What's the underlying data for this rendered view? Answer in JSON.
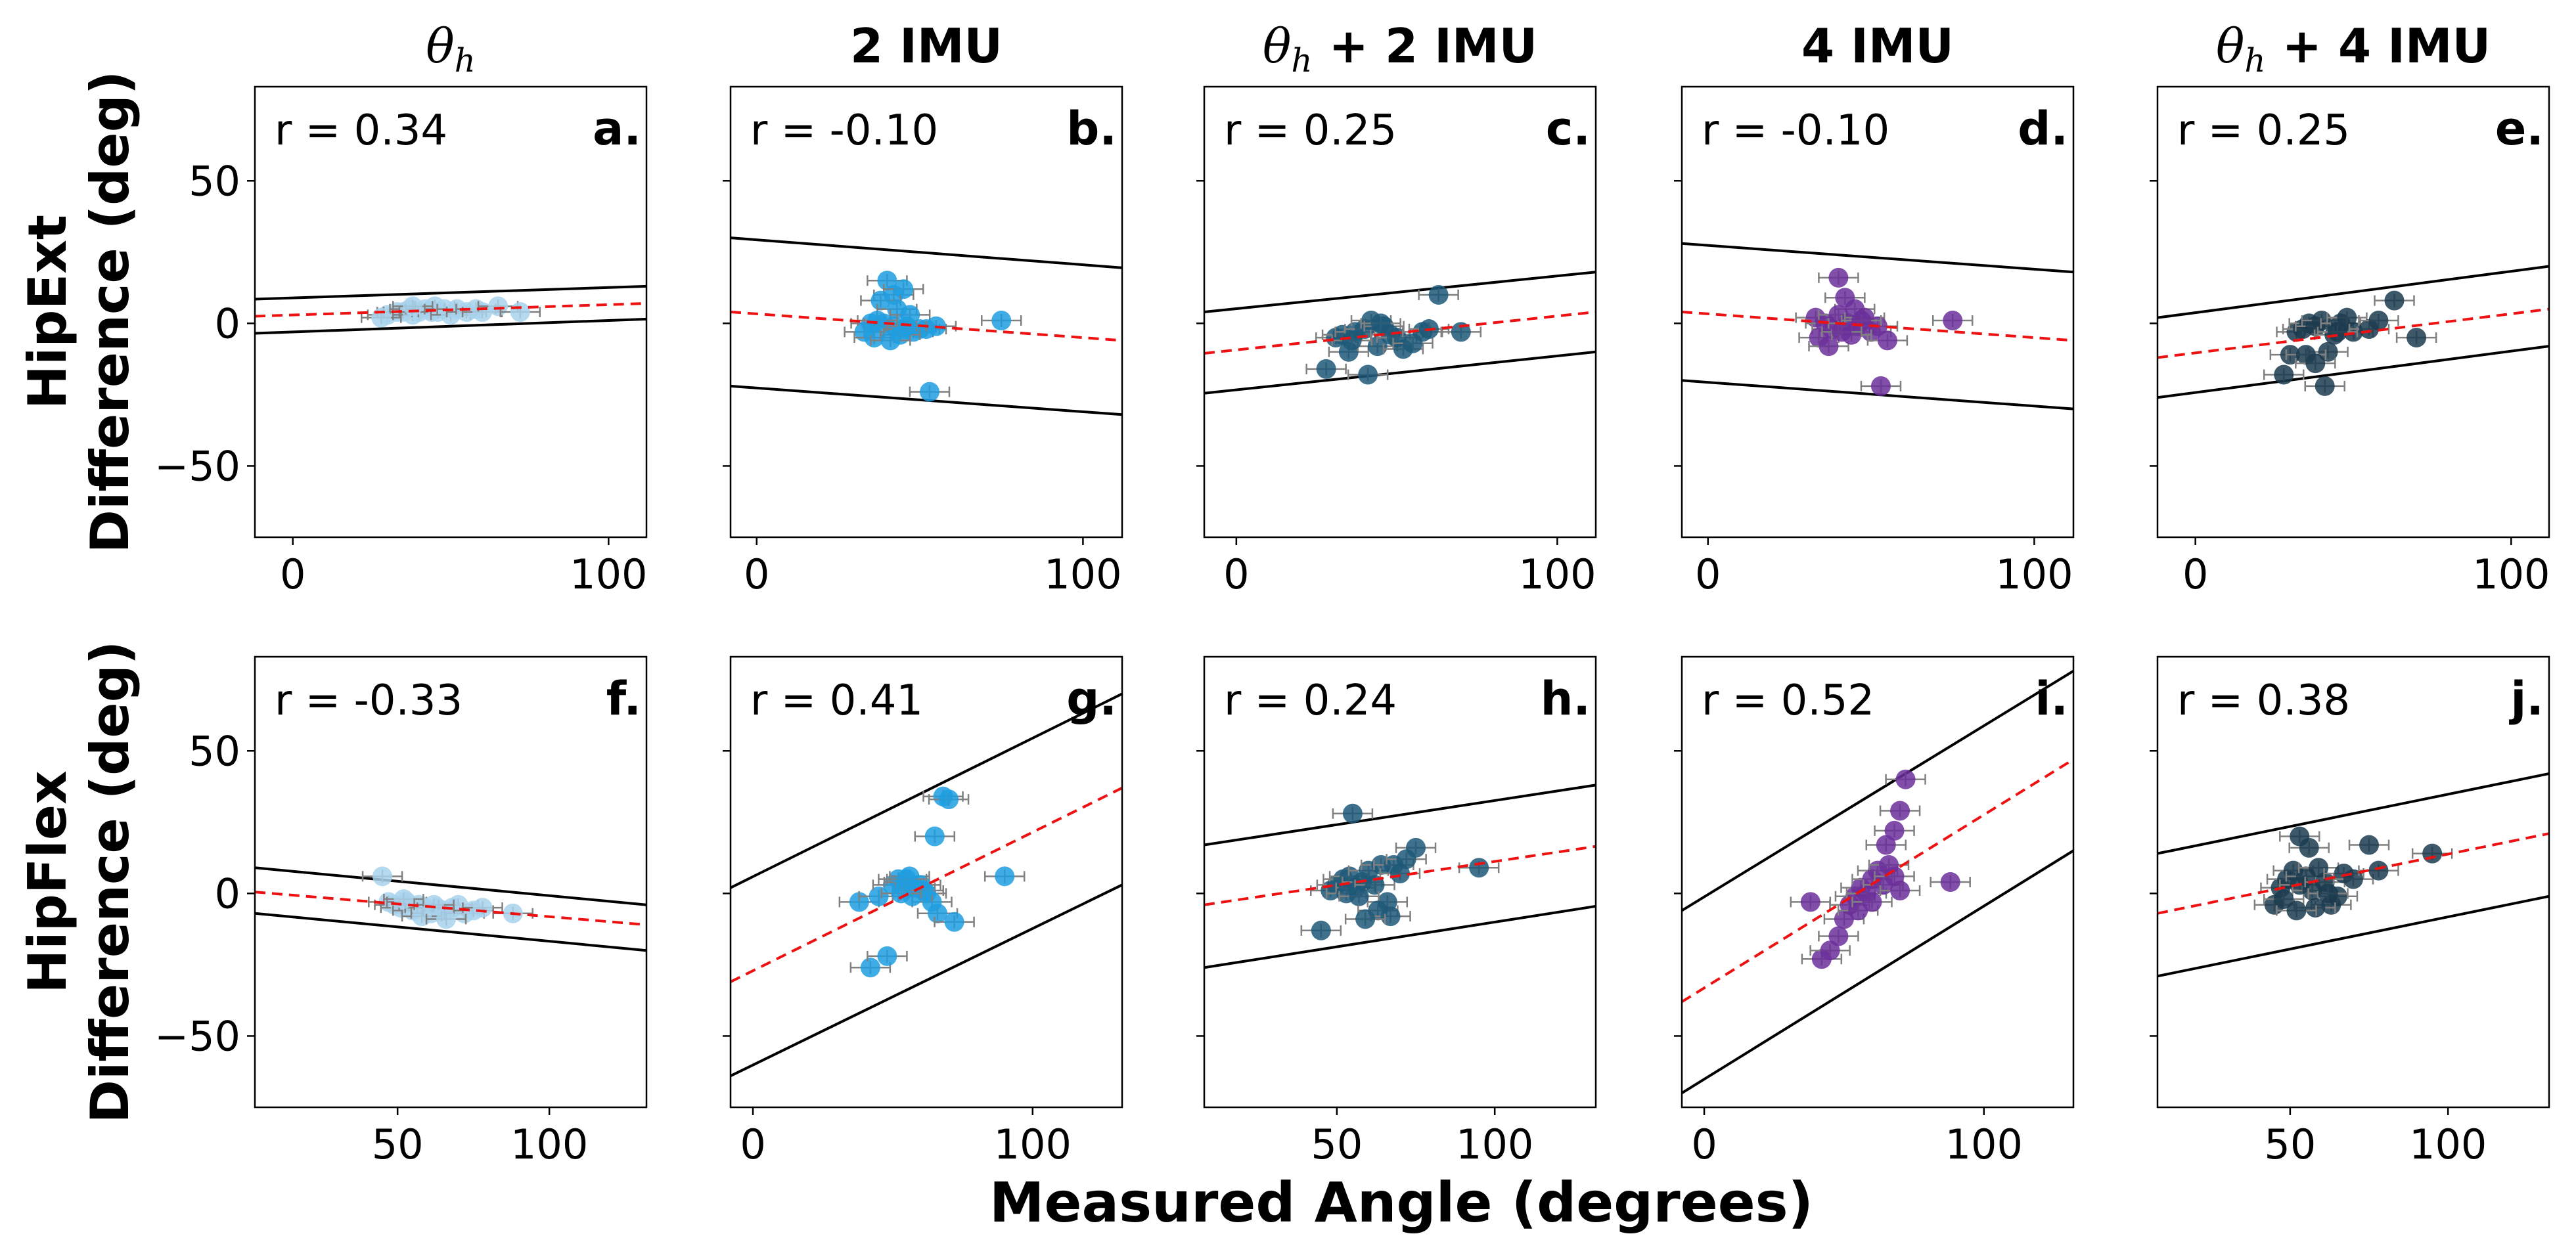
{
  "figure": {
    "column_titles": [
      {
        "main": "θ",
        "sub": "h",
        "rest": ""
      },
      {
        "main": "2 IMU",
        "sub": "",
        "rest": ""
      },
      {
        "main": "θ",
        "sub": "h",
        "rest": " + 2 IMU"
      },
      {
        "main": "4 IMU",
        "sub": "",
        "rest": ""
      },
      {
        "main": "θ",
        "sub": "h",
        "rest": " + 4 IMU"
      }
    ],
    "row_labels": [
      {
        "line1": "HipExt",
        "line2": "Difference (deg)"
      },
      {
        "line1": "HipFlex",
        "line2": "Difference (deg)"
      }
    ],
    "xlabel": "Measured Angle (degrees)"
  },
  "chart_data": [
    {
      "type": "scatter",
      "panel": "a.",
      "r_text": "r = 0.34",
      "color": "#a8d2ec",
      "xlim": [
        -12,
        112
      ],
      "ylim": [
        -75,
        83
      ],
      "xticks": [
        0,
        100
      ],
      "xticklabels": [
        "0",
        "100"
      ],
      "yticks": [
        -50,
        0,
        50
      ],
      "yticklabels": [
        "−50",
        "0",
        "50"
      ],
      "show_yticklabels": true,
      "fit": [
        [
          -12,
          2.5
        ],
        [
          112,
          7
        ]
      ],
      "upper": [
        [
          -12,
          8.5
        ],
        [
          112,
          13
        ]
      ],
      "lower": [
        [
          -12,
          -3.5
        ],
        [
          112,
          1.5
        ]
      ],
      "points": [
        [
          30,
          3
        ],
        [
          33,
          4
        ],
        [
          35,
          4
        ],
        [
          37,
          5
        ],
        [
          38,
          3
        ],
        [
          40,
          4
        ],
        [
          42,
          5
        ],
        [
          44,
          4
        ],
        [
          45,
          6
        ],
        [
          46,
          4
        ],
        [
          48,
          5
        ],
        [
          50,
          3
        ],
        [
          52,
          5
        ],
        [
          55,
          4
        ],
        [
          58,
          5
        ],
        [
          60,
          4
        ],
        [
          65,
          6
        ],
        [
          72,
          4
        ],
        [
          28,
          2
        ],
        [
          38,
          6
        ]
      ]
    },
    {
      "type": "scatter",
      "panel": "b.",
      "r_text": "r = -0.10",
      "color": "#1f9de0",
      "xlim": [
        -8,
        112
      ],
      "ylim": [
        -75,
        83
      ],
      "xticks": [
        0,
        100
      ],
      "xticklabels": [
        "0",
        "100"
      ],
      "yticks": [
        -50,
        0,
        50
      ],
      "yticklabels": [
        "−50",
        "0",
        "50"
      ],
      "show_yticklabels": false,
      "fit": [
        [
          -8,
          4
        ],
        [
          112,
          -6
        ]
      ],
      "upper": [
        [
          -8,
          30
        ],
        [
          112,
          19.5
        ]
      ],
      "lower": [
        [
          -8,
          -22
        ],
        [
          112,
          -32
        ]
      ],
      "points": [
        [
          40,
          15
        ],
        [
          42,
          10
        ],
        [
          45,
          12
        ],
        [
          38,
          8
        ],
        [
          43,
          5
        ],
        [
          47,
          3
        ],
        [
          35,
          0
        ],
        [
          39,
          0
        ],
        [
          42,
          -1
        ],
        [
          45,
          -2
        ],
        [
          48,
          -3
        ],
        [
          50,
          -2
        ],
        [
          52,
          -2
        ],
        [
          55,
          -1
        ],
        [
          33,
          -3
        ],
        [
          36,
          -5
        ],
        [
          44,
          -4
        ],
        [
          41,
          -6
        ],
        [
          75,
          1
        ],
        [
          53,
          -24
        ],
        [
          46,
          -1
        ],
        [
          37,
          1
        ]
      ]
    },
    {
      "type": "scatter",
      "panel": "c.",
      "r_text": "r = 0.25",
      "color": "#1d5878",
      "xlim": [
        -10,
        112
      ],
      "ylim": [
        -75,
        83
      ],
      "xticks": [
        0,
        100
      ],
      "xticklabels": [
        "0",
        "100"
      ],
      "yticks": [
        -50,
        0,
        50
      ],
      "yticklabels": [
        "−50",
        "0",
        "50"
      ],
      "show_yticklabels": false,
      "fit": [
        [
          -10,
          -10.5
        ],
        [
          112,
          4
        ]
      ],
      "upper": [
        [
          -10,
          4
        ],
        [
          112,
          18
        ]
      ],
      "lower": [
        [
          -10,
          -24.5
        ],
        [
          112,
          -10
        ]
      ],
      "points": [
        [
          63,
          10
        ],
        [
          28,
          -16
        ],
        [
          31,
          -5
        ],
        [
          33,
          -4
        ],
        [
          35,
          -10
        ],
        [
          37,
          -3
        ],
        [
          40,
          -2
        ],
        [
          42,
          1
        ],
        [
          44,
          -8
        ],
        [
          46,
          -1
        ],
        [
          48,
          -4
        ],
        [
          50,
          -5
        ],
        [
          52,
          -9
        ],
        [
          55,
          -7
        ],
        [
          58,
          -3
        ],
        [
          60,
          -2
        ],
        [
          70,
          -3
        ],
        [
          41,
          -18
        ],
        [
          36,
          -6
        ],
        [
          45,
          0
        ]
      ]
    },
    {
      "type": "scatter",
      "panel": "d.",
      "r_text": "r = -0.10",
      "color": "#6b2f9a",
      "xlim": [
        -8,
        112
      ],
      "ylim": [
        -75,
        83
      ],
      "xticks": [
        0,
        100
      ],
      "xticklabels": [
        "0",
        "100"
      ],
      "yticks": [
        -50,
        0,
        50
      ],
      "yticklabels": [
        "−50",
        "0",
        "50"
      ],
      "show_yticklabels": false,
      "fit": [
        [
          -8,
          4
        ],
        [
          112,
          -6
        ]
      ],
      "upper": [
        [
          -8,
          28
        ],
        [
          112,
          18
        ]
      ],
      "lower": [
        [
          -8,
          -20
        ],
        [
          112,
          -30
        ]
      ],
      "points": [
        [
          40,
          16
        ],
        [
          42,
          9
        ],
        [
          45,
          5
        ],
        [
          33,
          2
        ],
        [
          36,
          0
        ],
        [
          38,
          -2
        ],
        [
          40,
          3
        ],
        [
          43,
          0
        ],
        [
          46,
          -1
        ],
        [
          48,
          2
        ],
        [
          50,
          -3
        ],
        [
          52,
          -1
        ],
        [
          55,
          -6
        ],
        [
          34,
          -5
        ],
        [
          37,
          -8
        ],
        [
          44,
          -4
        ],
        [
          75,
          1
        ],
        [
          53,
          -22
        ],
        [
          47,
          1
        ],
        [
          41,
          -3
        ]
      ]
    },
    {
      "type": "scatter",
      "panel": "e.",
      "r_text": "r = 0.25",
      "color": "#1b3b4f",
      "xlim": [
        -12,
        112
      ],
      "ylim": [
        -75,
        83
      ],
      "xticks": [
        0,
        100
      ],
      "xticklabels": [
        "0",
        "100"
      ],
      "yticks": [
        -50,
        0,
        50
      ],
      "yticklabels": [
        "−50",
        "0",
        "50"
      ],
      "show_yticklabels": false,
      "fit": [
        [
          -12,
          -12
        ],
        [
          112,
          5
        ]
      ],
      "upper": [
        [
          -12,
          2
        ],
        [
          112,
          20
        ]
      ],
      "lower": [
        [
          -12,
          -26
        ],
        [
          112,
          -8
        ]
      ],
      "points": [
        [
          63,
          8
        ],
        [
          28,
          -18
        ],
        [
          30,
          -11
        ],
        [
          32,
          -3
        ],
        [
          34,
          -2
        ],
        [
          36,
          0
        ],
        [
          38,
          -1
        ],
        [
          40,
          1
        ],
        [
          42,
          -10
        ],
        [
          44,
          -4
        ],
        [
          46,
          0
        ],
        [
          48,
          2
        ],
        [
          50,
          -3
        ],
        [
          55,
          -2
        ],
        [
          58,
          1
        ],
        [
          70,
          -5
        ],
        [
          41,
          -22
        ],
        [
          35,
          -11
        ],
        [
          38,
          -14
        ],
        [
          45,
          -3
        ]
      ]
    },
    {
      "type": "scatter",
      "panel": "f.",
      "r_text": "r = -0.33",
      "color": "#a8d2ec",
      "xlim": [
        3,
        132
      ],
      "ylim": [
        -75,
        83
      ],
      "xticks": [
        50,
        100
      ],
      "xticklabels": [
        "50",
        "100"
      ],
      "yticks": [
        -50,
        0,
        50
      ],
      "yticklabels": [
        "−50",
        "0",
        "50"
      ],
      "show_yticklabels": true,
      "fit": [
        [
          3,
          0.5
        ],
        [
          132,
          -11
        ]
      ],
      "upper": [
        [
          3,
          9
        ],
        [
          132,
          -4
        ]
      ],
      "lower": [
        [
          3,
          -7
        ],
        [
          132,
          -20
        ]
      ],
      "points": [
        [
          45,
          6
        ],
        [
          47,
          -3
        ],
        [
          49,
          -4
        ],
        [
          51,
          -5
        ],
        [
          53,
          -3
        ],
        [
          55,
          -6
        ],
        [
          57,
          -4
        ],
        [
          59,
          -5
        ],
        [
          61,
          -7
        ],
        [
          63,
          -5
        ],
        [
          65,
          -6
        ],
        [
          68,
          -5
        ],
        [
          70,
          -4
        ],
        [
          72,
          -7
        ],
        [
          75,
          -6
        ],
        [
          78,
          -5
        ],
        [
          88,
          -7
        ],
        [
          52,
          -2
        ],
        [
          58,
          -8
        ],
        [
          62,
          -4
        ],
        [
          66,
          -9
        ]
      ]
    },
    {
      "type": "scatter",
      "panel": "g.",
      "r_text": "r = 0.41",
      "color": "#1f9de0",
      "xlim": [
        -8,
        132
      ],
      "ylim": [
        -75,
        83
      ],
      "xticks": [
        0,
        100
      ],
      "xticklabels": [
        "0",
        "100"
      ],
      "yticks": [
        -50,
        0,
        50
      ],
      "yticklabels": [
        "−50",
        "0",
        "50"
      ],
      "show_yticklabels": false,
      "fit": [
        [
          -8,
          -31
        ],
        [
          132,
          37
        ]
      ],
      "upper": [
        [
          -8,
          2
        ],
        [
          132,
          70
        ]
      ],
      "lower": [
        [
          -8,
          -64
        ],
        [
          132,
          3
        ]
      ],
      "points": [
        [
          68,
          34
        ],
        [
          70,
          33
        ],
        [
          65,
          20
        ],
        [
          42,
          -26
        ],
        [
          48,
          -22
        ],
        [
          38,
          -3
        ],
        [
          45,
          -1
        ],
        [
          50,
          3
        ],
        [
          52,
          5
        ],
        [
          54,
          4
        ],
        [
          56,
          6
        ],
        [
          58,
          2
        ],
        [
          60,
          3
        ],
        [
          62,
          0
        ],
        [
          64,
          -3
        ],
        [
          66,
          -7
        ],
        [
          72,
          -10
        ],
        [
          90,
          6
        ],
        [
          55,
          5
        ],
        [
          57,
          -1
        ],
        [
          61,
          1
        ],
        [
          53,
          0
        ]
      ]
    },
    {
      "type": "scatter",
      "panel": "h.",
      "r_text": "r = 0.24",
      "color": "#1d5878",
      "xlim": [
        8,
        132
      ],
      "ylim": [
        -75,
        83
      ],
      "xticks": [
        50,
        100
      ],
      "xticklabels": [
        "50",
        "100"
      ],
      "yticks": [
        -50,
        0,
        50
      ],
      "yticklabels": [
        "−50",
        "0",
        "50"
      ],
      "show_yticklabels": false,
      "fit": [
        [
          8,
          -4
        ],
        [
          132,
          16.5
        ]
      ],
      "upper": [
        [
          8,
          17
        ],
        [
          132,
          38
        ]
      ],
      "lower": [
        [
          8,
          -26
        ],
        [
          132,
          -4.5
        ]
      ],
      "points": [
        [
          55,
          28
        ],
        [
          45,
          -13
        ],
        [
          48,
          1
        ],
        [
          50,
          3
        ],
        [
          52,
          5
        ],
        [
          54,
          6
        ],
        [
          56,
          2
        ],
        [
          58,
          4
        ],
        [
          60,
          8
        ],
        [
          62,
          3
        ],
        [
          64,
          10
        ],
        [
          66,
          -3
        ],
        [
          68,
          10
        ],
        [
          70,
          7
        ],
        [
          72,
          12
        ],
        [
          75,
          16
        ],
        [
          95,
          9
        ],
        [
          53,
          0
        ],
        [
          57,
          -1
        ],
        [
          63,
          -6
        ],
        [
          67,
          -8
        ],
        [
          59,
          -9
        ]
      ]
    },
    {
      "type": "scatter",
      "panel": "i.",
      "r_text": "r = 0.52",
      "color": "#6b2f9a",
      "xlim": [
        -8,
        132
      ],
      "ylim": [
        -75,
        83
      ],
      "xticks": [
        0,
        100
      ],
      "xticklabels": [
        "0",
        "100"
      ],
      "yticks": [
        -50,
        0,
        50
      ],
      "yticklabels": [
        "−50",
        "0",
        "50"
      ],
      "show_yticklabels": false,
      "fit": [
        [
          -8,
          -38
        ],
        [
          132,
          47
        ]
      ],
      "upper": [
        [
          -8,
          -6
        ],
        [
          132,
          78
        ]
      ],
      "lower": [
        [
          -8,
          -70
        ],
        [
          132,
          15
        ]
      ],
      "points": [
        [
          72,
          40
        ],
        [
          70,
          29
        ],
        [
          68,
          22
        ],
        [
          65,
          17
        ],
        [
          38,
          -3
        ],
        [
          42,
          -23
        ],
        [
          45,
          -20
        ],
        [
          48,
          -15
        ],
        [
          50,
          -9
        ],
        [
          52,
          -4
        ],
        [
          54,
          -1
        ],
        [
          56,
          2
        ],
        [
          58,
          0
        ],
        [
          60,
          5
        ],
        [
          62,
          8
        ],
        [
          64,
          3
        ],
        [
          66,
          10
        ],
        [
          68,
          6
        ],
        [
          88,
          4
        ],
        [
          70,
          1
        ],
        [
          55,
          -6
        ],
        [
          60,
          -3
        ]
      ]
    },
    {
      "type": "scatter",
      "panel": "j.",
      "r_text": "r = 0.38",
      "color": "#1b3b4f",
      "xlim": [
        8,
        132
      ],
      "ylim": [
        -75,
        83
      ],
      "xticks": [
        50,
        100
      ],
      "xticklabels": [
        "50",
        "100"
      ],
      "yticks": [
        -50,
        0,
        50
      ],
      "yticklabels": [
        "−50",
        "0",
        "50"
      ],
      "show_yticklabels": false,
      "fit": [
        [
          8,
          -7
        ],
        [
          132,
          21
        ]
      ],
      "upper": [
        [
          8,
          14
        ],
        [
          132,
          42
        ]
      ],
      "lower": [
        [
          8,
          -29
        ],
        [
          132,
          -1
        ]
      ],
      "points": [
        [
          53,
          20
        ],
        [
          56,
          16
        ],
        [
          45,
          -4
        ],
        [
          47,
          2
        ],
        [
          49,
          5
        ],
        [
          51,
          8
        ],
        [
          53,
          3
        ],
        [
          55,
          6
        ],
        [
          57,
          1
        ],
        [
          59,
          9
        ],
        [
          61,
          4
        ],
        [
          63,
          -4
        ],
        [
          65,
          -1
        ],
        [
          67,
          7
        ],
        [
          70,
          5
        ],
        [
          75,
          17
        ],
        [
          78,
          8
        ],
        [
          95,
          14
        ],
        [
          48,
          -2
        ],
        [
          58,
          -5
        ],
        [
          62,
          0
        ],
        [
          52,
          -6
        ]
      ]
    }
  ]
}
